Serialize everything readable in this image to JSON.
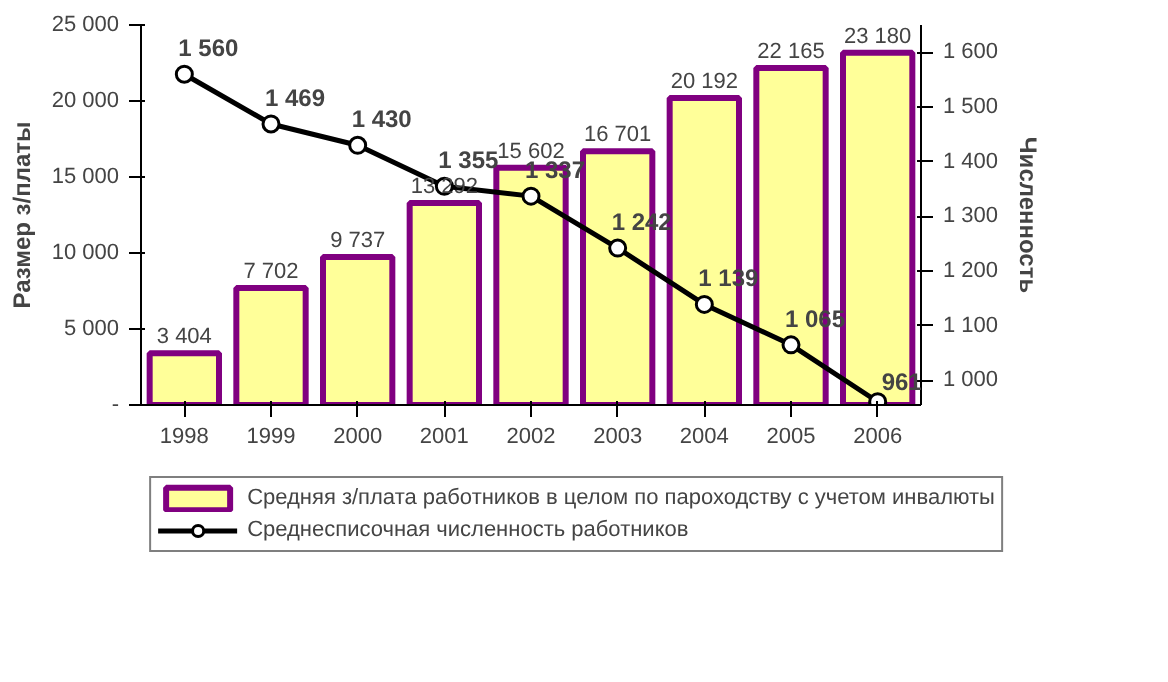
{
  "chart_data": {
    "type": "bar",
    "categories": [
      "1998",
      "1999",
      "2000",
      "2001",
      "2002",
      "2003",
      "2004",
      "2005",
      "2006"
    ],
    "ylabel": "Размер з/платы",
    "y2label": "Численность",
    "ylim": [
      0,
      25000
    ],
    "yticks": [
      {
        "value": 0,
        "label": "-"
      },
      {
        "value": 5000,
        "label": "5 000"
      },
      {
        "value": 10000,
        "label": "10 000"
      },
      {
        "value": 15000,
        "label": "15 000"
      },
      {
        "value": 20000,
        "label": "20 000"
      },
      {
        "value": 25000,
        "label": "25 000"
      }
    ],
    "y2lim": [
      955,
      1650
    ],
    "y2ticks": [
      {
        "value": 1000,
        "label": "1 000"
      },
      {
        "value": 1100,
        "label": "1 100"
      },
      {
        "value": 1200,
        "label": "1 200"
      },
      {
        "value": 1300,
        "label": "1 300"
      },
      {
        "value": 1400,
        "label": "1 400"
      },
      {
        "value": 1500,
        "label": "1 500"
      },
      {
        "value": 1600,
        "label": "1 600"
      }
    ],
    "series": [
      {
        "name": "Средняя з/плата работников в целом по пароходству с учетом инвалюты",
        "color": "#ffff99",
        "values": [
          3404,
          7702,
          9737,
          13292,
          15602,
          16701,
          20192,
          22165,
          23180
        ]
      },
      {
        "name": "Среднесписочная численность работников",
        "type": "line",
        "axis": "y2",
        "color": "#000000",
        "marker": "circle",
        "values": [
          1560,
          1469,
          1430,
          1355,
          1337,
          1242,
          1139,
          1065,
          961
        ]
      }
    ],
    "data_labels": true,
    "legend": "bottom",
    "grid": false
  }
}
